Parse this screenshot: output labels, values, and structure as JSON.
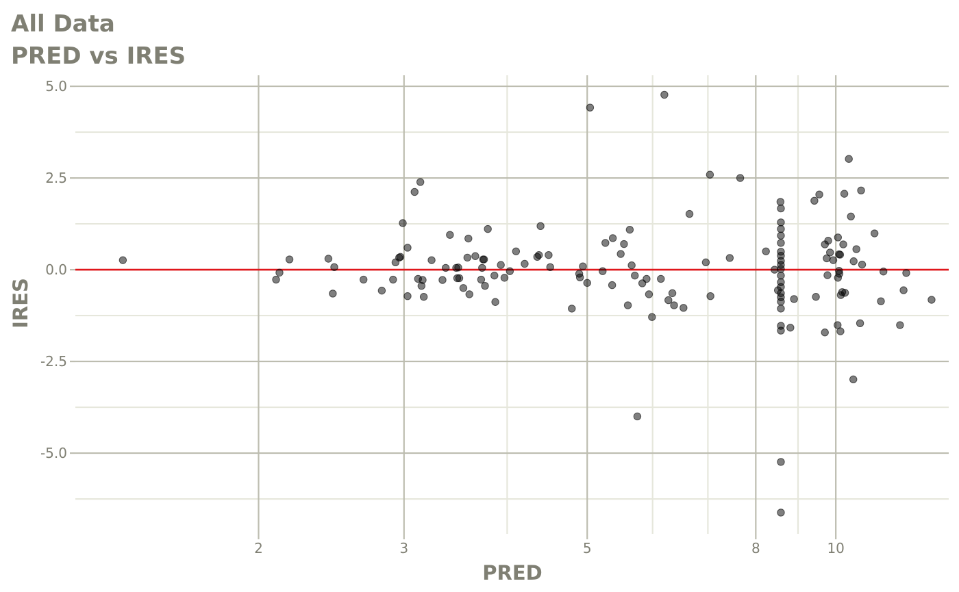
{
  "title": {
    "line1": "All Data",
    "line2": "PRED vs IRES"
  },
  "colors": {
    "text": "#7f7f73",
    "grid_major": "#bdbdb0",
    "grid_minor": "#e6e7dc",
    "points": "#000000",
    "reference_line": "#e0161b"
  },
  "chart_data": {
    "type": "scatter",
    "title": "All Data",
    "subtitle": "PRED vs IRES",
    "xlabel": "PRED",
    "ylabel": "IRES",
    "x_scale": "log",
    "xlim": [
      1.2,
      13.7
    ],
    "ylim": [
      -7.2,
      5.3
    ],
    "x_ticks": [
      2,
      3,
      5,
      8,
      10
    ],
    "x_tick_labels": [
      "2",
      "3",
      "5",
      "8",
      "10"
    ],
    "y_ticks": [
      5.0,
      2.5,
      0.0,
      -2.5,
      -5.0
    ],
    "y_tick_labels": [
      "5.0",
      "2.5",
      "0.0",
      "-2.5",
      "-5.0"
    ],
    "x_minor_gridlines": [
      4,
      6,
      7,
      9
    ],
    "y_minor_gridlines": [
      3.75,
      1.25,
      -1.25,
      -3.75,
      -6.25
    ],
    "grid": true,
    "reference_line": {
      "y": 0
    },
    "points": [
      [
        1.37,
        0.26
      ],
      [
        2.1,
        -0.27
      ],
      [
        2.12,
        -0.08
      ],
      [
        2.18,
        0.28
      ],
      [
        2.43,
        0.3
      ],
      [
        2.46,
        -0.65
      ],
      [
        2.47,
        0.07
      ],
      [
        2.68,
        -0.27
      ],
      [
        2.82,
        -0.57
      ],
      [
        2.91,
        -0.27
      ],
      [
        2.93,
        0.2
      ],
      [
        2.96,
        0.33
      ],
      [
        2.97,
        0.35
      ],
      [
        2.99,
        1.27
      ],
      [
        3.03,
        0.6
      ],
      [
        3.03,
        -0.72
      ],
      [
        3.09,
        2.12
      ],
      [
        3.12,
        -0.25
      ],
      [
        3.14,
        2.39
      ],
      [
        3.15,
        -0.44
      ],
      [
        3.16,
        -0.28
      ],
      [
        3.17,
        -0.74
      ],
      [
        3.24,
        0.26
      ],
      [
        3.34,
        -0.28
      ],
      [
        3.37,
        0.05
      ],
      [
        3.41,
        0.95
      ],
      [
        3.47,
        0.05
      ],
      [
        3.48,
        -0.23
      ],
      [
        3.49,
        0.06
      ],
      [
        3.5,
        -0.23
      ],
      [
        3.54,
        -0.5
      ],
      [
        3.58,
        0.33
      ],
      [
        3.59,
        0.85
      ],
      [
        3.6,
        -0.67
      ],
      [
        3.66,
        0.37
      ],
      [
        3.72,
        -0.27
      ],
      [
        3.73,
        0.05
      ],
      [
        3.74,
        0.28
      ],
      [
        3.75,
        0.28
      ],
      [
        3.76,
        -0.44
      ],
      [
        3.79,
        1.11
      ],
      [
        3.86,
        -0.16
      ],
      [
        3.87,
        -0.88
      ],
      [
        3.93,
        0.13
      ],
      [
        3.97,
        -0.22
      ],
      [
        4.03,
        -0.04
      ],
      [
        4.1,
        0.5
      ],
      [
        4.2,
        0.16
      ],
      [
        4.35,
        0.35
      ],
      [
        4.37,
        0.4
      ],
      [
        4.39,
        1.19
      ],
      [
        4.49,
        0.4
      ],
      [
        4.51,
        0.07
      ],
      [
        4.79,
        -1.06
      ],
      [
        4.89,
        -0.11
      ],
      [
        4.9,
        -0.21
      ],
      [
        4.94,
        0.09
      ],
      [
        5.0,
        -0.36
      ],
      [
        5.04,
        4.42
      ],
      [
        5.22,
        -0.04
      ],
      [
        5.26,
        0.73
      ],
      [
        5.37,
        0.86
      ],
      [
        5.36,
        -0.42
      ],
      [
        5.49,
        0.43
      ],
      [
        5.54,
        0.7
      ],
      [
        5.6,
        -0.97
      ],
      [
        5.63,
        1.09
      ],
      [
        5.66,
        0.12
      ],
      [
        5.71,
        -0.16
      ],
      [
        5.75,
        -4.0
      ],
      [
        5.83,
        -0.37
      ],
      [
        5.9,
        -0.25
      ],
      [
        5.94,
        -0.67
      ],
      [
        5.99,
        -1.29
      ],
      [
        6.14,
        -0.25
      ],
      [
        6.2,
        4.77
      ],
      [
        6.27,
        -0.83
      ],
      [
        6.34,
        -0.64
      ],
      [
        6.37,
        -0.97
      ],
      [
        6.54,
        -1.04
      ],
      [
        6.65,
        1.52
      ],
      [
        6.96,
        0.2
      ],
      [
        7.04,
        2.59
      ],
      [
        7.05,
        -0.72
      ],
      [
        7.44,
        0.32
      ],
      [
        7.66,
        2.5
      ],
      [
        8.23,
        0.5
      ],
      [
        8.43,
        0.0
      ],
      [
        8.51,
        -0.56
      ],
      [
        8.57,
        1.85
      ],
      [
        8.58,
        1.67
      ],
      [
        8.58,
        1.29
      ],
      [
        8.58,
        1.11
      ],
      [
        8.58,
        0.93
      ],
      [
        8.58,
        0.73
      ],
      [
        8.58,
        0.49
      ],
      [
        8.58,
        0.38
      ],
      [
        8.58,
        0.24
      ],
      [
        8.58,
        0.13
      ],
      [
        8.58,
        0.02
      ],
      [
        8.58,
        -0.16
      ],
      [
        8.58,
        -0.34
      ],
      [
        8.58,
        -0.47
      ],
      [
        8.58,
        -0.64
      ],
      [
        8.58,
        -0.75
      ],
      [
        8.58,
        -0.87
      ],
      [
        8.58,
        -1.06
      ],
      [
        8.58,
        -1.53
      ],
      [
        8.58,
        -1.66
      ],
      [
        8.58,
        -5.24
      ],
      [
        8.58,
        -6.62
      ],
      [
        8.81,
        -1.58
      ],
      [
        8.9,
        -0.8
      ],
      [
        9.42,
        1.88
      ],
      [
        9.46,
        -0.74
      ],
      [
        9.55,
        2.05
      ],
      [
        9.7,
        0.69
      ],
      [
        9.7,
        -1.71
      ],
      [
        9.75,
        0.31
      ],
      [
        9.77,
        -0.15
      ],
      [
        9.79,
        0.79
      ],
      [
        9.84,
        0.47
      ],
      [
        9.93,
        0.26
      ],
      [
        10.05,
        -1.51
      ],
      [
        10.06,
        0.88
      ],
      [
        10.06,
        -0.22
      ],
      [
        10.09,
        -0.03
      ],
      [
        10.09,
        0.42
      ],
      [
        10.1,
        -0.11
      ],
      [
        10.12,
        0.41
      ],
      [
        10.13,
        -1.68
      ],
      [
        10.14,
        -0.69
      ],
      [
        10.18,
        -0.61
      ],
      [
        10.21,
        0.69
      ],
      [
        10.24,
        2.07
      ],
      [
        10.26,
        -0.63
      ],
      [
        10.37,
        3.02
      ],
      [
        10.43,
        1.45
      ],
      [
        10.5,
        -2.99
      ],
      [
        10.51,
        0.23
      ],
      [
        10.59,
        0.56
      ],
      [
        10.7,
        -1.46
      ],
      [
        10.73,
        2.16
      ],
      [
        10.76,
        0.14
      ],
      [
        11.14,
        0.99
      ],
      [
        11.34,
        -0.86
      ],
      [
        11.42,
        -0.05
      ],
      [
        11.96,
        -1.51
      ],
      [
        12.08,
        -0.56
      ],
      [
        12.17,
        -0.09
      ],
      [
        13.06,
        -0.82
      ]
    ]
  }
}
